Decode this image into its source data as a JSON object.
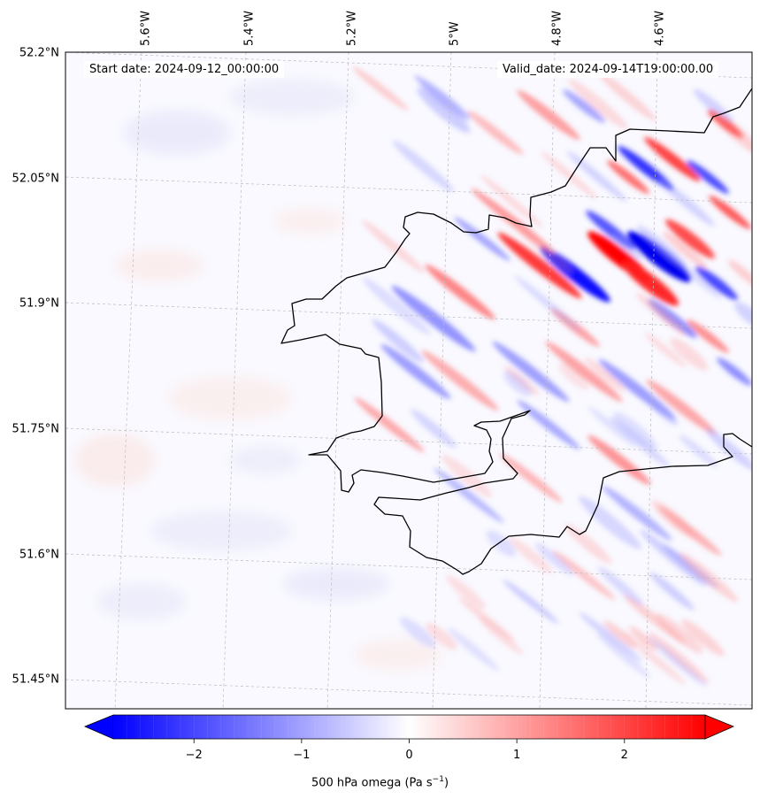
{
  "start_label": "Start date: 2024-09-12_00:00:00",
  "valid_label": "Valid_date: 2024-09-14T19:00:00.00",
  "lon_ticks": [
    "5.6°W",
    "5.4°W",
    "5.2°W",
    "5°W",
    "4.8°W",
    "4.6°W"
  ],
  "lat_ticks": [
    "52.2°N",
    "52.05°N",
    "51.9°N",
    "51.75°N",
    "51.6°N",
    "51.45°N"
  ],
  "colorbar": {
    "label_prefix": "500 hPa omega (Pa s",
    "label_exp": "−1",
    "label_suffix": ")",
    "ticks": [
      "−2",
      "−1",
      "0",
      "1",
      "2"
    ],
    "tick_values": [
      -2,
      -1,
      0,
      1,
      2
    ],
    "range": [
      -2.75,
      2.75
    ],
    "colormap": "bwr"
  },
  "colors": {
    "coast": "#000000",
    "grid": "#bbbbbb",
    "blue": "#0000ff",
    "red": "#ff0000"
  }
}
